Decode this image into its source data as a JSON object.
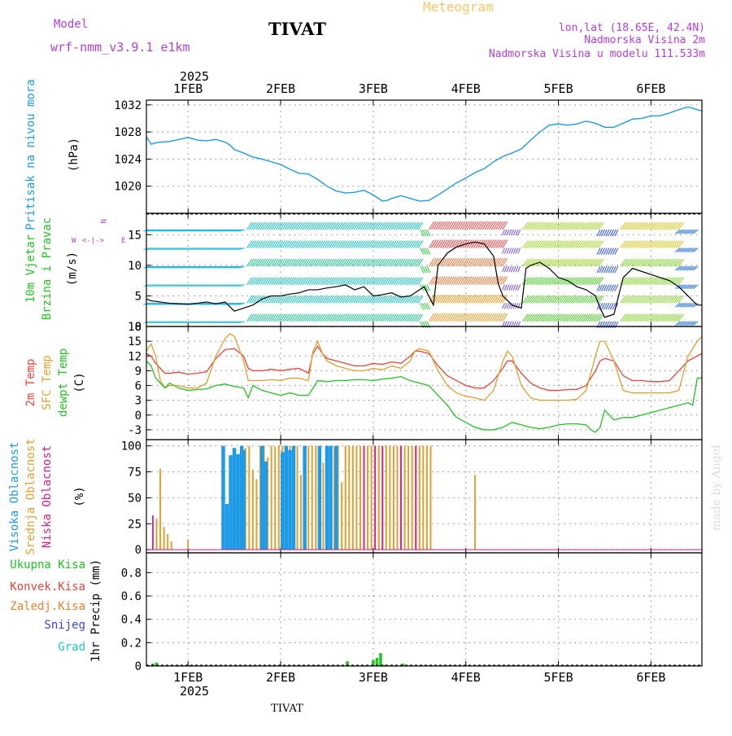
{
  "header": {
    "model_label": "Model",
    "model_name": "wrf-nmm_v3.9.1 e1km",
    "station": "TIVAT",
    "title": "Meteogram",
    "coords": "lon,lat (18.65E, 42.4N)",
    "elevation": "Nadmorska Visina 2m",
    "model_elevation": "Nadmorska Visina u modelu 111.533m",
    "bottom_station": "TIVAT",
    "credit": "made by Angel",
    "year": "2025"
  },
  "colors": {
    "pressure": "#1e9be6",
    "temp2m": "#e8463c",
    "sfc_temp": "#e0a030",
    "dewpt": "#22c322",
    "high_cloud": "#1e9be6",
    "mid_cloud": "#e0a030",
    "low_cloud": "#d81b8f",
    "purple_text": "#b040d8",
    "precip_total": "#22c322",
    "precip_conv": "#e8463c",
    "precip_frz": "#f08030",
    "snow": "#4040e0",
    "grad": "#20c8c8"
  },
  "chart_data": [
    {
      "type": "line",
      "panel": "pressure",
      "ylabel_main": "Pritisak na nivou mora",
      "ylabel_unit": "(hPa)",
      "ylim": [
        1016,
        1032.7
      ],
      "yticks": [
        "1020",
        "1024",
        "1028",
        "1032"
      ],
      "xlim": [
        0.55,
        6.55
      ],
      "xticks": [
        "1FEB",
        "2FEB",
        "3FEB",
        "4FEB",
        "5FEB",
        "6FEB"
      ],
      "grid": true,
      "series": [
        {
          "key": "pressure",
          "x": [
            0.55,
            0.6,
            0.65,
            0.7,
            0.8,
            0.9,
            1.0,
            1.1,
            1.2,
            1.3,
            1.4,
            1.45,
            1.5,
            1.6,
            1.7,
            1.8,
            1.9,
            2.0,
            2.1,
            2.2,
            2.3,
            2.4,
            2.5,
            2.6,
            2.7,
            2.8,
            2.9,
            3.0,
            3.1,
            3.15,
            3.2,
            3.3,
            3.4,
            3.5,
            3.6,
            3.7,
            3.8,
            3.9,
            4.0,
            4.1,
            4.2,
            4.3,
            4.4,
            4.5,
            4.6,
            4.7,
            4.8,
            4.9,
            5.0,
            5.1,
            5.2,
            5.3,
            5.4,
            5.5,
            5.6,
            5.7,
            5.8,
            5.9,
            6.0,
            6.1,
            6.2,
            6.3,
            6.4,
            6.5,
            6.55
          ],
          "values": [
            1027.3,
            1026.2,
            1026.4,
            1026.5,
            1026.6,
            1026.9,
            1027.2,
            1026.8,
            1026.7,
            1026.9,
            1026.5,
            1026.1,
            1025.4,
            1024.9,
            1024.3,
            1024.0,
            1023.6,
            1023.2,
            1022.5,
            1021.9,
            1021.8,
            1021.0,
            1020.0,
            1019.3,
            1019.0,
            1019.1,
            1019.4,
            1018.7,
            1017.8,
            1017.9,
            1018.2,
            1018.6,
            1018.2,
            1017.8,
            1017.9,
            1018.7,
            1019.6,
            1020.5,
            1021.2,
            1022.0,
            1022.6,
            1023.6,
            1024.4,
            1024.9,
            1025.5,
            1026.8,
            1028.0,
            1029.0,
            1029.2,
            1029.0,
            1029.2,
            1029.6,
            1029.3,
            1028.7,
            1028.7,
            1029.3,
            1029.9,
            1030.0,
            1030.4,
            1030.4,
            1030.8,
            1031.3,
            1031.7,
            1031.3,
            1031.1
          ]
        }
      ]
    },
    {
      "type": "line",
      "panel": "wind",
      "ylabel_main": "10m Vjetar",
      "ylabel_sub": "Brzina i Pravac",
      "ylabel_unit": "(m/s)",
      "direction_key": "N",
      "ylim": [
        0,
        18.5
      ],
      "yticks": [
        "0",
        "5",
        "10",
        "15"
      ],
      "grid": true,
      "series": [
        {
          "key": "speed",
          "x": [
            0.55,
            0.6,
            0.8,
            1.0,
            1.2,
            1.3,
            1.4,
            1.5,
            1.6,
            1.7,
            1.8,
            1.9,
            2.0,
            2.1,
            2.2,
            2.3,
            2.4,
            2.5,
            2.6,
            2.7,
            2.8,
            2.9,
            3.0,
            3.1,
            3.2,
            3.3,
            3.4,
            3.5,
            3.55,
            3.6,
            3.65,
            3.7,
            3.8,
            3.9,
            4.0,
            4.1,
            4.2,
            4.25,
            4.3,
            4.35,
            4.4,
            4.5,
            4.6,
            4.65,
            4.7,
            4.8,
            4.9,
            5.0,
            5.1,
            5.2,
            5.3,
            5.4,
            5.45,
            5.5,
            5.6,
            5.7,
            5.8,
            5.9,
            6.0,
            6.1,
            6.2,
            6.3,
            6.4,
            6.5,
            6.55
          ],
          "values": [
            4.5,
            4.2,
            3.8,
            3.6,
            4.0,
            3.7,
            4.0,
            2.5,
            3.0,
            3.5,
            4.5,
            5.0,
            5.0,
            5.3,
            5.5,
            6.0,
            6.0,
            6.3,
            6.5,
            6.8,
            6.0,
            6.5,
            5.0,
            5.2,
            5.5,
            4.8,
            5.0,
            6.0,
            6.5,
            5.0,
            3.5,
            10.0,
            12.0,
            13.0,
            13.5,
            13.8,
            13.5,
            12.5,
            11.5,
            7.0,
            5.0,
            3.5,
            3.0,
            9.5,
            10.0,
            10.5,
            9.5,
            8.0,
            7.5,
            6.5,
            6.0,
            5.0,
            3.0,
            1.5,
            2.0,
            8.0,
            9.5,
            9.0,
            8.5,
            8.0,
            7.5,
            6.5,
            5.0,
            3.5,
            3.5
          ]
        }
      ]
    },
    {
      "type": "line",
      "panel": "temperature",
      "ylabel_t2": "2m Temp",
      "ylabel_sfc": "SFC Temp",
      "ylabel_dew": "dewpt Temp",
      "ylabel_unit": "(C)",
      "ylim": [
        -5,
        18
      ],
      "yticks": [
        "-3",
        "0",
        "3",
        "6",
        "9",
        "12",
        "15",
        "18"
      ],
      "grid": true,
      "series": [
        {
          "key": "temp2m",
          "x": [
            0.55,
            0.6,
            0.65,
            0.7,
            0.75,
            0.8,
            0.9,
            1.0,
            1.1,
            1.2,
            1.3,
            1.4,
            1.5,
            1.6,
            1.65,
            1.7,
            1.8,
            1.9,
            2.0,
            2.1,
            2.2,
            2.3,
            2.35,
            2.4,
            2.45,
            2.5,
            2.6,
            2.7,
            2.8,
            2.9,
            3.0,
            3.1,
            3.2,
            3.3,
            3.4,
            3.45,
            3.5,
            3.6,
            3.7,
            3.8,
            3.9,
            4.0,
            4.1,
            4.2,
            4.3,
            4.4,
            4.45,
            4.5,
            4.6,
            4.7,
            4.8,
            4.9,
            5.0,
            5.1,
            5.2,
            5.3,
            5.4,
            5.45,
            5.5,
            5.6,
            5.7,
            5.8,
            5.9,
            6.0,
            6.1,
            6.2,
            6.3,
            6.4,
            6.5,
            6.55
          ],
          "values": [
            12.5,
            12.0,
            10.5,
            9.5,
            8.5,
            8.5,
            8.7,
            8.3,
            8.5,
            8.8,
            11.5,
            13.3,
            13.5,
            12.0,
            9.5,
            9.0,
            9.0,
            9.3,
            9.0,
            9.3,
            9.5,
            8.5,
            12.5,
            14.0,
            12.5,
            11.5,
            11.0,
            10.5,
            10.0,
            10.0,
            10.5,
            10.3,
            10.8,
            10.5,
            12.0,
            13.0,
            13.0,
            12.5,
            10.0,
            8.0,
            7.0,
            6.0,
            5.5,
            5.5,
            7.0,
            9.5,
            11.0,
            11.0,
            8.5,
            6.5,
            5.5,
            5.0,
            5.0,
            5.2,
            5.2,
            6.0,
            9.0,
            11.0,
            11.5,
            11.0,
            8.0,
            7.0,
            7.0,
            6.8,
            6.8,
            7.0,
            9.0,
            11.0,
            12.0,
            12.5
          ]
        },
        {
          "key": "sfc_temp",
          "x": [
            0.55,
            0.6,
            0.65,
            0.7,
            0.75,
            0.8,
            0.9,
            1.0,
            1.1,
            1.2,
            1.3,
            1.4,
            1.45,
            1.5,
            1.6,
            1.65,
            1.7,
            1.8,
            1.9,
            2.0,
            2.1,
            2.2,
            2.3,
            2.35,
            2.4,
            2.45,
            2.5,
            2.6,
            2.7,
            2.8,
            2.9,
            3.0,
            3.1,
            3.2,
            3.3,
            3.4,
            3.45,
            3.5,
            3.6,
            3.7,
            3.8,
            3.9,
            4.0,
            4.1,
            4.2,
            4.3,
            4.4,
            4.45,
            4.5,
            4.6,
            4.7,
            4.8,
            4.9,
            5.0,
            5.1,
            5.2,
            5.3,
            5.4,
            5.45,
            5.5,
            5.6,
            5.7,
            5.8,
            5.9,
            6.0,
            6.1,
            6.2,
            6.3,
            6.4,
            6.5,
            6.55
          ],
          "values": [
            13.0,
            14.5,
            12.0,
            7.0,
            5.5,
            6.0,
            6.0,
            5.5,
            5.5,
            6.5,
            12.0,
            15.5,
            16.5,
            16.0,
            11.0,
            7.0,
            7.0,
            7.0,
            7.2,
            7.0,
            7.5,
            7.5,
            7.0,
            13.0,
            15.0,
            12.5,
            11.0,
            10.0,
            9.5,
            9.0,
            9.0,
            9.5,
            9.2,
            10.0,
            9.5,
            11.0,
            13.0,
            13.5,
            13.0,
            9.0,
            6.0,
            4.5,
            3.8,
            3.5,
            3.0,
            5.0,
            11.0,
            13.0,
            12.0,
            6.0,
            3.5,
            3.0,
            3.0,
            3.0,
            3.0,
            3.2,
            5.0,
            12.0,
            15.0,
            15.0,
            11.0,
            5.0,
            4.5,
            4.5,
            4.5,
            4.5,
            4.5,
            5.0,
            12.0,
            15.0,
            16.0
          ]
        },
        {
          "key": "dewpt",
          "x": [
            0.55,
            0.6,
            0.65,
            0.7,
            0.75,
            0.8,
            0.9,
            1.0,
            1.1,
            1.2,
            1.3,
            1.4,
            1.5,
            1.6,
            1.65,
            1.7,
            1.8,
            1.9,
            2.0,
            2.1,
            2.2,
            2.3,
            2.4,
            2.5,
            2.6,
            2.7,
            2.8,
            2.9,
            3.0,
            3.1,
            3.2,
            3.3,
            3.4,
            3.5,
            3.6,
            3.7,
            3.8,
            3.9,
            4.0,
            4.1,
            4.2,
            4.3,
            4.4,
            4.5,
            4.6,
            4.7,
            4.8,
            4.9,
            5.0,
            5.1,
            5.2,
            5.3,
            5.35,
            5.4,
            5.45,
            5.5,
            5.6,
            5.7,
            5.8,
            5.9,
            6.0,
            6.1,
            6.2,
            6.3,
            6.4,
            6.45,
            6.5,
            6.55
          ],
          "values": [
            11.0,
            10.0,
            7.5,
            6.5,
            5.5,
            6.5,
            5.5,
            5.0,
            5.2,
            5.3,
            6.0,
            6.3,
            5.8,
            5.5,
            3.5,
            6.0,
            5.0,
            4.5,
            4.0,
            4.5,
            4.0,
            4.0,
            7.0,
            6.8,
            7.0,
            7.0,
            7.2,
            7.2,
            7.0,
            7.3,
            7.5,
            7.8,
            7.0,
            6.5,
            6.0,
            4.0,
            2.0,
            -0.5,
            -1.5,
            -2.5,
            -3.0,
            -3.0,
            -2.5,
            -1.5,
            -2.0,
            -2.5,
            -2.8,
            -2.5,
            -2.0,
            -1.8,
            -1.8,
            -2.0,
            -3.0,
            -3.5,
            -2.5,
            1.0,
            -1.0,
            -0.5,
            -0.5,
            0.0,
            0.5,
            1.0,
            1.5,
            2.0,
            2.5,
            2.0,
            7.5,
            7.5
          ]
        }
      ]
    },
    {
      "type": "bar",
      "panel": "clouds",
      "ylabel_high": "Visoka Oblacnost",
      "ylabel_mid": "Srednja Oblacnost",
      "ylabel_low": "Niska Oblacnost",
      "ylabel_unit": "(%)",
      "ylim": [
        -3,
        106
      ],
      "yticks": [
        "0",
        "25",
        "50",
        "75",
        "100"
      ],
      "grid": true,
      "series": [
        {
          "key": "high",
          "x": [
            1.38,
            1.42,
            1.46,
            1.5,
            1.54,
            1.58,
            1.6,
            1.8,
            1.84,
            2.02,
            2.06,
            2.1,
            2.14,
            2.26,
            2.42,
            2.5,
            2.54,
            2.6
          ],
          "values": [
            100,
            44,
            91,
            98,
            92,
            100,
            96,
            100,
            85,
            94,
            100,
            96,
            100,
            100,
            100,
            100,
            100,
            100
          ]
        },
        {
          "key": "mid",
          "x": [
            0.66,
            0.7,
            0.74,
            0.78,
            0.82,
            1.0,
            1.62,
            1.66,
            1.7,
            1.74,
            1.78,
            1.82,
            1.86,
            1.9,
            1.94,
            1.98,
            2.02,
            2.06,
            2.1,
            2.14,
            2.18,
            2.22,
            2.26,
            2.3,
            2.34,
            2.38,
            2.42,
            2.46,
            2.5,
            2.54,
            2.58,
            2.62,
            2.66,
            2.7,
            2.74,
            2.78,
            2.82,
            2.86,
            2.9,
            2.94,
            2.98,
            3.02,
            3.06,
            3.1,
            3.14,
            3.18,
            3.22,
            3.26,
            3.3,
            3.34,
            3.38,
            3.42,
            3.46,
            3.5,
            3.54,
            3.58,
            3.62,
            4.1
          ],
          "values": [
            30,
            78,
            22,
            15,
            8,
            10,
            98,
            100,
            77,
            68,
            100,
            100,
            89,
            100,
            99,
            100,
            100,
            100,
            100,
            100,
            100,
            72,
            27,
            100,
            100,
            100,
            100,
            84,
            100,
            100,
            100,
            100,
            65,
            100,
            100,
            100,
            100,
            100,
            100,
            100,
            100,
            100,
            100,
            100,
            100,
            100,
            100,
            100,
            100,
            100,
            100,
            100,
            100,
            100,
            100,
            100,
            100,
            72
          ]
        },
        {
          "key": "low",
          "x": [
            0.62,
            2.9,
            3.02,
            3.1,
            3.3,
            3.46
          ],
          "values": [
            33,
            100,
            100,
            100,
            100,
            100
          ]
        }
      ]
    },
    {
      "type": "bar",
      "panel": "precip",
      "ylabel_total": "Ukupna Kisa",
      "ylabel_conv": "Konvek.Kisa",
      "ylabel_frz": "Zaledj.Kisa",
      "ylabel_snow": "Snijeg",
      "ylabel_grad": "Grad",
      "ylabel_unit": "1hr Precip (mm)",
      "ylim": [
        0,
        0.97
      ],
      "yticks": [
        "0",
        "0.2",
        "0.4",
        "0.6",
        "0.8"
      ],
      "grid": true,
      "series": [
        {
          "key": "total",
          "x": [
            0.62,
            0.66,
            2.72,
            3.0,
            3.04,
            3.08,
            3.12,
            3.32
          ],
          "values": [
            0.02,
            0.03,
            0.04,
            0.05,
            0.07,
            0.11,
            0.01,
            0.02
          ]
        }
      ]
    }
  ]
}
